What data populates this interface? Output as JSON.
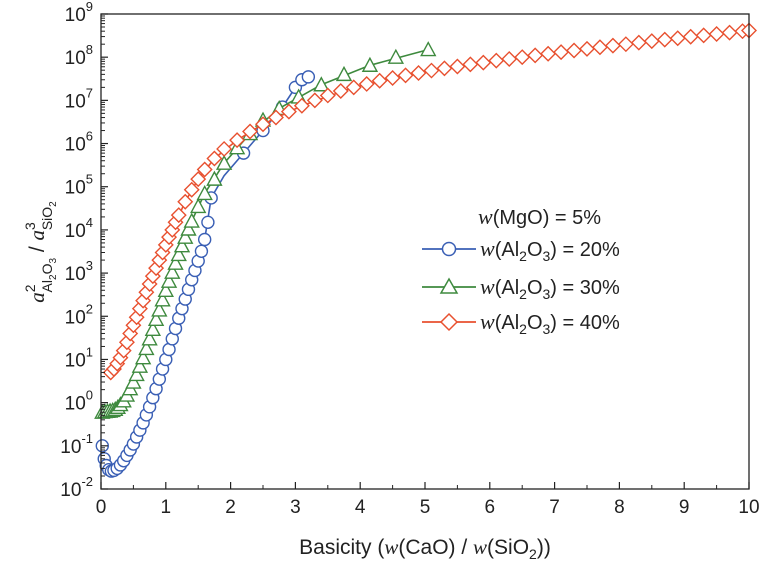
{
  "chart_data": {
    "type": "scatter",
    "xlabel": {
      "prefix": "Basicity (",
      "w1": "w",
      "mid": "(CaO) / ",
      "w2": "w",
      "mid2": "(SiO",
      "sub": "2",
      "suffix": "))"
    },
    "ylabel": {
      "a1": "a",
      "sup1": "2",
      "sub1": "Al",
      "sub1b": "2",
      "sub1c": "O",
      "sub1d": "3",
      "sep": " / ",
      "a2": "a",
      "sup2": "3",
      "sub2": "SiO",
      "sub2b": "2"
    },
    "xlim": [
      0,
      10
    ],
    "ylim": [
      0.01,
      1000000000
    ],
    "yscale": "log",
    "grid": false,
    "legend_placement": "center-right",
    "x_ticks": [
      "0",
      "1",
      "2",
      "3",
      "4",
      "5",
      "6",
      "7",
      "8",
      "9",
      "10"
    ],
    "y_ticks": [
      {
        "base": "10",
        "exp": "-2"
      },
      {
        "base": "10",
        "exp": "-1"
      },
      {
        "base": "10",
        "exp": "0"
      },
      {
        "base": "10",
        "exp": "1"
      },
      {
        "base": "10",
        "exp": "2"
      },
      {
        "base": "10",
        "exp": "3"
      },
      {
        "base": "10",
        "exp": "4"
      },
      {
        "base": "10",
        "exp": "5"
      },
      {
        "base": "10",
        "exp": "6"
      },
      {
        "base": "10",
        "exp": "7"
      },
      {
        "base": "10",
        "exp": "8"
      },
      {
        "base": "10",
        "exp": "9"
      }
    ],
    "legend": {
      "header": {
        "w": "w",
        "text": "(MgO) = 5%"
      },
      "entries": [
        {
          "w": "w",
          "pre": "(Al",
          "sub": "2",
          "mid": "O",
          "sub2": "3",
          "post": ") = 20%"
        },
        {
          "w": "w",
          "pre": "(Al",
          "sub": "2",
          "mid": "O",
          "sub2": "3",
          "post": ") = 30%"
        },
        {
          "w": "w",
          "pre": "(Al",
          "sub": "2",
          "mid": "O",
          "sub2": "3",
          "post": ") = 40%"
        }
      ]
    },
    "series": [
      {
        "marker": "circle",
        "color": "#3a5fb5",
        "points": [
          [
            0.02,
            0.1
          ],
          [
            0.05,
            0.05
          ],
          [
            0.08,
            0.035
          ],
          [
            0.12,
            0.028
          ],
          [
            0.16,
            0.026
          ],
          [
            0.2,
            0.027
          ],
          [
            0.25,
            0.03
          ],
          [
            0.3,
            0.036
          ],
          [
            0.35,
            0.045
          ],
          [
            0.4,
            0.06
          ],
          [
            0.45,
            0.08
          ],
          [
            0.5,
            0.11
          ],
          [
            0.55,
            0.16
          ],
          [
            0.6,
            0.23
          ],
          [
            0.65,
            0.34
          ],
          [
            0.7,
            0.52
          ],
          [
            0.75,
            0.8
          ],
          [
            0.8,
            1.3
          ],
          [
            0.85,
            2.1
          ],
          [
            0.9,
            3.5
          ],
          [
            0.95,
            6
          ],
          [
            1.0,
            10
          ],
          [
            1.05,
            17
          ],
          [
            1.1,
            30
          ],
          [
            1.15,
            52
          ],
          [
            1.2,
            90
          ],
          [
            1.25,
            150
          ],
          [
            1.3,
            250
          ],
          [
            1.35,
            420
          ],
          [
            1.4,
            700
          ],
          [
            1.45,
            1150
          ],
          [
            1.5,
            1900
          ],
          [
            1.55,
            3200
          ],
          [
            1.6,
            6000
          ],
          [
            1.65,
            15000
          ],
          [
            1.7,
            55000
          ],
          [
            2.2,
            600000
          ],
          [
            2.5,
            2000000
          ],
          [
            2.8,
            7000000
          ],
          [
            3.0,
            20000000
          ],
          [
            3.1,
            30000000
          ],
          [
            3.2,
            35000000
          ]
        ],
        "line": [
          [
            0.02,
            0.1
          ],
          [
            0.1,
            0.03
          ],
          [
            0.2,
            0.027
          ],
          [
            0.3,
            0.036
          ],
          [
            0.4,
            0.06
          ],
          [
            0.5,
            0.11
          ],
          [
            0.6,
            0.23
          ],
          [
            0.7,
            0.52
          ],
          [
            0.8,
            1.3
          ],
          [
            0.9,
            3.5
          ],
          [
            1.0,
            10
          ],
          [
            1.1,
            30
          ],
          [
            1.2,
            90
          ],
          [
            1.3,
            250
          ],
          [
            1.4,
            700
          ],
          [
            1.5,
            1900
          ],
          [
            1.6,
            6000
          ],
          [
            1.7,
            55000
          ],
          [
            1.9,
            180000
          ],
          [
            2.2,
            600000
          ],
          [
            2.5,
            2000000
          ],
          [
            2.8,
            7000000
          ],
          [
            3.0,
            20000000
          ],
          [
            3.2,
            35000000
          ]
        ]
      },
      {
        "marker": "triangle",
        "color": "#3e8a3e",
        "points": [
          [
            0.02,
            0.6
          ],
          [
            0.06,
            0.62
          ],
          [
            0.1,
            0.63
          ],
          [
            0.14,
            0.64
          ],
          [
            0.18,
            0.66
          ],
          [
            0.22,
            0.7
          ],
          [
            0.26,
            0.78
          ],
          [
            0.3,
            0.9
          ],
          [
            0.35,
            1.1
          ],
          [
            0.4,
            1.5
          ],
          [
            0.45,
            2.1
          ],
          [
            0.5,
            3.0
          ],
          [
            0.55,
            4.5
          ],
          [
            0.6,
            7
          ],
          [
            0.65,
            11
          ],
          [
            0.7,
            18
          ],
          [
            0.75,
            30
          ],
          [
            0.8,
            50
          ],
          [
            0.85,
            85
          ],
          [
            0.9,
            140
          ],
          [
            0.95,
            240
          ],
          [
            1.0,
            400
          ],
          [
            1.05,
            650
          ],
          [
            1.1,
            1050
          ],
          [
            1.15,
            1700
          ],
          [
            1.2,
            2700
          ],
          [
            1.25,
            4300
          ],
          [
            1.3,
            6800
          ],
          [
            1.35,
            10500
          ],
          [
            1.4,
            16000
          ],
          [
            1.5,
            35000
          ],
          [
            1.6,
            70000
          ],
          [
            1.75,
            150000
          ],
          [
            1.9,
            350000
          ],
          [
            2.1,
            800000
          ],
          [
            2.3,
            1700000
          ],
          [
            2.5,
            3500000
          ],
          [
            2.75,
            6500000
          ],
          [
            3.05,
            12000000
          ],
          [
            3.4,
            23000000
          ],
          [
            3.75,
            40000000
          ],
          [
            4.15,
            65000000
          ],
          [
            4.55,
            100000000
          ],
          [
            5.05,
            150000000
          ]
        ],
        "line": [
          [
            0.02,
            0.6
          ],
          [
            0.2,
            0.68
          ],
          [
            0.4,
            1.5
          ],
          [
            0.6,
            7
          ],
          [
            0.8,
            50
          ],
          [
            1.0,
            400
          ],
          [
            1.2,
            2700
          ],
          [
            1.4,
            16000
          ],
          [
            1.6,
            70000
          ],
          [
            1.9,
            350000
          ],
          [
            2.3,
            1700000
          ],
          [
            2.75,
            6500000
          ],
          [
            3.4,
            23000000
          ],
          [
            4.15,
            65000000
          ],
          [
            5.05,
            150000000
          ]
        ]
      },
      {
        "marker": "diamond",
        "color": "#e8502f",
        "points": [
          [
            0.15,
            5
          ],
          [
            0.2,
            6
          ],
          [
            0.25,
            8
          ],
          [
            0.3,
            11
          ],
          [
            0.35,
            16
          ],
          [
            0.4,
            25
          ],
          [
            0.45,
            40
          ],
          [
            0.5,
            62
          ],
          [
            0.55,
            95
          ],
          [
            0.6,
            150
          ],
          [
            0.65,
            230
          ],
          [
            0.7,
            360
          ],
          [
            0.75,
            560
          ],
          [
            0.8,
            850
          ],
          [
            0.85,
            1300
          ],
          [
            0.9,
            2000
          ],
          [
            0.95,
            3000
          ],
          [
            1.0,
            4500
          ],
          [
            1.05,
            6800
          ],
          [
            1.1,
            10000
          ],
          [
            1.15,
            15000
          ],
          [
            1.2,
            22000
          ],
          [
            1.3,
            45000
          ],
          [
            1.4,
            85000
          ],
          [
            1.5,
            150000
          ],
          [
            1.6,
            250000
          ],
          [
            1.75,
            450000
          ],
          [
            1.9,
            750000
          ],
          [
            2.1,
            1200000
          ],
          [
            2.3,
            1900000
          ],
          [
            2.5,
            2800000
          ],
          [
            2.7,
            4000000
          ],
          [
            2.9,
            5500000
          ],
          [
            3.1,
            7500000
          ],
          [
            3.3,
            10000000
          ],
          [
            3.5,
            13000000
          ],
          [
            3.7,
            16500000
          ],
          [
            3.9,
            20000000
          ],
          [
            4.1,
            24000000
          ],
          [
            4.3,
            28500000
          ],
          [
            4.5,
            33000000
          ],
          [
            4.7,
            38000000
          ],
          [
            4.9,
            43000000
          ],
          [
            5.1,
            49000000
          ],
          [
            5.3,
            55000000
          ],
          [
            5.5,
            61000000
          ],
          [
            5.7,
            68000000
          ],
          [
            5.9,
            75000000
          ],
          [
            6.1,
            83000000
          ],
          [
            6.3,
            91000000
          ],
          [
            6.5,
            100000000
          ],
          [
            6.7,
            110000000
          ],
          [
            6.9,
            120000000
          ],
          [
            7.1,
            131000000
          ],
          [
            7.3,
            143000000
          ],
          [
            7.5,
            156000000
          ],
          [
            7.7,
            170000000
          ],
          [
            7.9,
            185000000
          ],
          [
            8.1,
            200000000
          ],
          [
            8.3,
            217000000
          ],
          [
            8.5,
            235000000
          ],
          [
            8.7,
            255000000
          ],
          [
            8.9,
            275000000
          ],
          [
            9.1,
            297000000
          ],
          [
            9.3,
            320000000
          ],
          [
            9.5,
            345000000
          ],
          [
            9.7,
            370000000
          ],
          [
            9.9,
            400000000
          ],
          [
            10.0,
            415000000
          ]
        ],
        "line": [
          [
            0.15,
            5
          ],
          [
            0.3,
            11
          ],
          [
            0.5,
            62
          ],
          [
            0.7,
            360
          ],
          [
            0.9,
            2000
          ],
          [
            1.1,
            10000
          ],
          [
            1.3,
            45000
          ],
          [
            1.5,
            150000
          ],
          [
            1.75,
            450000
          ],
          [
            2.1,
            1200000
          ],
          [
            2.5,
            2800000
          ],
          [
            3.1,
            7500000
          ],
          [
            3.9,
            20000000
          ],
          [
            4.9,
            43000000
          ],
          [
            6.1,
            83000000
          ],
          [
            7.3,
            143000000
          ],
          [
            8.5,
            235000000
          ],
          [
            9.5,
            345000000
          ],
          [
            10.0,
            415000000
          ]
        ]
      }
    ]
  }
}
